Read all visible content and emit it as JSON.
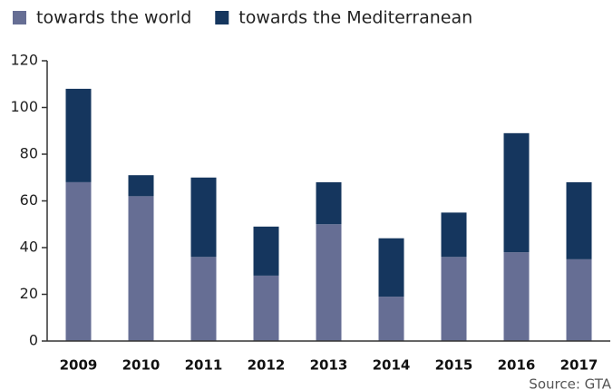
{
  "chart_data": {
    "type": "stacked_bar",
    "categories": [
      "2009",
      "2010",
      "2011",
      "2012",
      "2013",
      "2014",
      "2015",
      "2016",
      "2017"
    ],
    "series": [
      {
        "name": "towards the world",
        "color": "#666e94",
        "values": [
          68,
          62,
          36,
          28,
          50,
          19,
          36,
          38,
          35
        ]
      },
      {
        "name": "towards the Mediterranean",
        "color": "#15365e",
        "values": [
          40,
          9,
          34,
          21,
          18,
          25,
          19,
          51,
          33
        ]
      }
    ],
    "ylim": [
      0,
      120
    ],
    "yticks": [
      0,
      20,
      40,
      60,
      80,
      100,
      120
    ],
    "grid": false,
    "legend": "top-left",
    "source": "Source: GTA"
  }
}
